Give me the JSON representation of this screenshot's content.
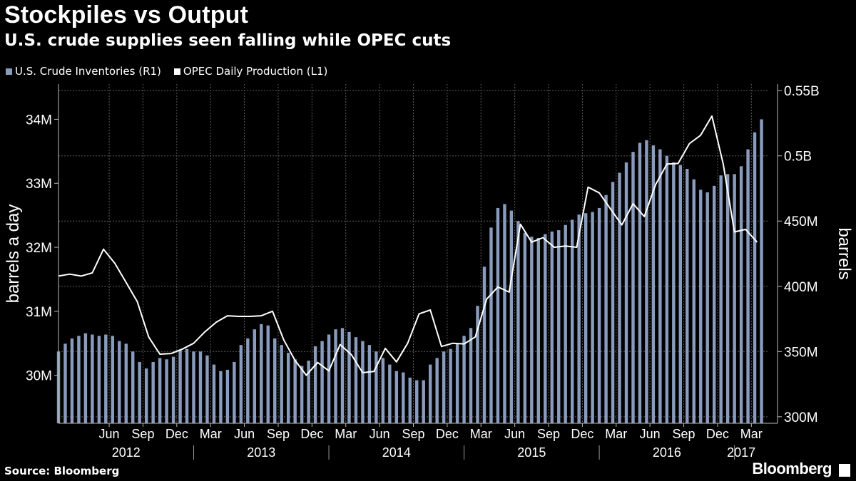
{
  "chart_data": {
    "type": "bar+line",
    "title": "Stockpiles vs Output",
    "subtitle": "U.S. crude supplies seen falling while OPEC cuts",
    "source": "Source: Bloomberg",
    "brand": "Bloomberg",
    "ylabel_left": "barrels a day",
    "ylabel_right": "barrels",
    "colors": {
      "bars": "#8a9cbd",
      "line": "#ffffff",
      "grid": "#5a5a5a",
      "background": "#000000"
    },
    "left_axis": {
      "min": 29.25,
      "max": 34.55,
      "ticks": [
        30,
        31,
        32,
        33,
        34
      ],
      "tick_labels": [
        "30M",
        "31M",
        "32M",
        "33M",
        "34M"
      ]
    },
    "right_axis": {
      "min": 295,
      "max": 555,
      "ticks": [
        300,
        350,
        400,
        450,
        500,
        550
      ],
      "tick_labels": [
        "300M",
        "350M",
        "400M",
        "450M",
        "0.5B",
        "0.55B"
      ]
    },
    "x_axis": {
      "month_labels": [
        "Jun",
        "Sep",
        "Dec",
        "Mar",
        "Jun",
        "Sep",
        "Dec",
        "Mar",
        "Jun",
        "Sep",
        "Dec",
        "Mar",
        "Jun",
        "Sep",
        "Dec",
        "Mar",
        "Jun",
        "Sep",
        "Dec",
        "Mar"
      ],
      "month_positions": [
        2012.375,
        2012.625,
        2012.875,
        2013.125,
        2013.375,
        2013.625,
        2013.875,
        2014.125,
        2014.375,
        2014.625,
        2014.875,
        2015.125,
        2015.375,
        2015.625,
        2015.875,
        2016.125,
        2016.375,
        2016.625,
        2016.875,
        2017.125
      ],
      "year_labels": [
        "2012",
        "2013",
        "2014",
        "2015",
        "2016",
        "2017"
      ],
      "year_positions": [
        2012.5,
        2013.5,
        2014.5,
        2015.5,
        2016.5,
        2017.05
      ],
      "year_dividers": [
        2013.0,
        2014.0,
        2015.0,
        2016.0,
        2017.0
      ],
      "xlim": [
        2012.0,
        2017.25
      ]
    },
    "series": [
      {
        "name": "U.S. Crude Inventories (R1)",
        "type": "bar",
        "axis": "right",
        "unit": "M barrels",
        "points": [
          [
            2012.0,
            350
          ],
          [
            2012.05,
            356
          ],
          [
            2012.1,
            360
          ],
          [
            2012.15,
            362
          ],
          [
            2012.2,
            364
          ],
          [
            2012.25,
            363
          ],
          [
            2012.3,
            362
          ],
          [
            2012.35,
            363
          ],
          [
            2012.4,
            362
          ],
          [
            2012.45,
            358
          ],
          [
            2012.5,
            356
          ],
          [
            2012.55,
            350
          ],
          [
            2012.6,
            342
          ],
          [
            2012.65,
            337
          ],
          [
            2012.7,
            342
          ],
          [
            2012.75,
            345
          ],
          [
            2012.8,
            344
          ],
          [
            2012.85,
            346
          ],
          [
            2012.9,
            351
          ],
          [
            2012.95,
            352
          ],
          [
            2013.0,
            350
          ],
          [
            2013.05,
            350
          ],
          [
            2013.1,
            347
          ],
          [
            2013.15,
            340
          ],
          [
            2013.2,
            335
          ],
          [
            2013.25,
            336
          ],
          [
            2013.3,
            342
          ],
          [
            2013.35,
            355
          ],
          [
            2013.4,
            360
          ],
          [
            2013.45,
            367
          ],
          [
            2013.5,
            371
          ],
          [
            2013.55,
            370
          ],
          [
            2013.6,
            360
          ],
          [
            2013.65,
            355
          ],
          [
            2013.7,
            349
          ],
          [
            2013.75,
            344
          ],
          [
            2013.8,
            339
          ],
          [
            2013.85,
            343
          ],
          [
            2013.9,
            354
          ],
          [
            2013.95,
            358
          ],
          [
            2014.0,
            363
          ],
          [
            2014.05,
            367
          ],
          [
            2014.1,
            368
          ],
          [
            2014.15,
            365
          ],
          [
            2014.2,
            361
          ],
          [
            2014.25,
            358
          ],
          [
            2014.3,
            355
          ],
          [
            2014.35,
            350
          ],
          [
            2014.4,
            345
          ],
          [
            2014.45,
            340
          ],
          [
            2014.5,
            335
          ],
          [
            2014.55,
            334
          ],
          [
            2014.6,
            330
          ],
          [
            2014.65,
            328
          ],
          [
            2014.7,
            328
          ],
          [
            2014.75,
            340
          ],
          [
            2014.8,
            345
          ],
          [
            2014.85,
            350
          ],
          [
            2014.9,
            352
          ],
          [
            2014.95,
            356
          ],
          [
            2015.0,
            362
          ],
          [
            2015.05,
            368
          ],
          [
            2015.1,
            385
          ],
          [
            2015.15,
            415
          ],
          [
            2015.2,
            445
          ],
          [
            2015.25,
            460
          ],
          [
            2015.3,
            463
          ],
          [
            2015.35,
            458
          ],
          [
            2015.4,
            450
          ],
          [
            2015.45,
            441
          ],
          [
            2015.5,
            438
          ],
          [
            2015.55,
            437
          ],
          [
            2015.6,
            440
          ],
          [
            2015.65,
            442
          ],
          [
            2015.7,
            443
          ],
          [
            2015.75,
            447
          ],
          [
            2015.8,
            451
          ],
          [
            2015.85,
            455
          ],
          [
            2015.9,
            456
          ],
          [
            2015.95,
            457
          ],
          [
            2016.0,
            460
          ],
          [
            2016.05,
            470
          ],
          [
            2016.1,
            480
          ],
          [
            2016.15,
            487
          ],
          [
            2016.2,
            495
          ],
          [
            2016.25,
            503
          ],
          [
            2016.3,
            510
          ],
          [
            2016.35,
            512
          ],
          [
            2016.4,
            508
          ],
          [
            2016.45,
            505
          ],
          [
            2016.5,
            500
          ],
          [
            2016.55,
            495
          ],
          [
            2016.6,
            493
          ],
          [
            2016.65,
            490
          ],
          [
            2016.7,
            482
          ],
          [
            2016.75,
            474
          ],
          [
            2016.8,
            472
          ],
          [
            2016.85,
            477
          ],
          [
            2016.9,
            485
          ],
          [
            2016.95,
            486
          ],
          [
            2017.0,
            486
          ],
          [
            2017.05,
            492
          ],
          [
            2017.1,
            505
          ],
          [
            2017.15,
            518
          ],
          [
            2017.2,
            528
          ]
        ]
      },
      {
        "name": "OPEC Daily Production (L1)",
        "type": "line",
        "axis": "left",
        "unit": "M barrels a day",
        "points": [
          [
            2012.0,
            31.55
          ],
          [
            2012.083,
            31.58
          ],
          [
            2012.167,
            31.55
          ],
          [
            2012.25,
            31.6
          ],
          [
            2012.333,
            31.97
          ],
          [
            2012.417,
            31.75
          ],
          [
            2012.5,
            31.45
          ],
          [
            2012.583,
            31.15
          ],
          [
            2012.667,
            30.6
          ],
          [
            2012.75,
            30.33
          ],
          [
            2012.833,
            30.34
          ],
          [
            2012.917,
            30.41
          ],
          [
            2013.0,
            30.5
          ],
          [
            2013.083,
            30.68
          ],
          [
            2013.167,
            30.83
          ],
          [
            2013.25,
            30.93
          ],
          [
            2013.333,
            30.92
          ],
          [
            2013.417,
            30.92
          ],
          [
            2013.5,
            30.93
          ],
          [
            2013.583,
            31.0
          ],
          [
            2013.667,
            30.55
          ],
          [
            2013.75,
            30.23
          ],
          [
            2013.833,
            30.0
          ],
          [
            2013.917,
            30.2
          ],
          [
            2014.0,
            30.07
          ],
          [
            2014.083,
            30.48
          ],
          [
            2014.167,
            30.32
          ],
          [
            2014.25,
            30.04
          ],
          [
            2014.333,
            30.06
          ],
          [
            2014.417,
            30.42
          ],
          [
            2014.5,
            30.21
          ],
          [
            2014.583,
            30.5
          ],
          [
            2014.667,
            30.96
          ],
          [
            2014.75,
            31.02
          ],
          [
            2014.833,
            30.45
          ],
          [
            2014.917,
            30.5
          ],
          [
            2015.0,
            30.49
          ],
          [
            2015.083,
            30.6
          ],
          [
            2015.167,
            31.19
          ],
          [
            2015.25,
            31.38
          ],
          [
            2015.333,
            31.3
          ],
          [
            2015.417,
            32.36
          ],
          [
            2015.5,
            32.08
          ],
          [
            2015.583,
            32.15
          ],
          [
            2015.667,
            32.0
          ],
          [
            2015.75,
            32.02
          ],
          [
            2015.833,
            32.0
          ],
          [
            2015.917,
            32.94
          ],
          [
            2016.0,
            32.85
          ],
          [
            2016.083,
            32.6
          ],
          [
            2016.167,
            32.35
          ],
          [
            2016.25,
            32.68
          ],
          [
            2016.333,
            32.48
          ],
          [
            2016.417,
            32.98
          ],
          [
            2016.5,
            33.3
          ],
          [
            2016.583,
            33.31
          ],
          [
            2016.667,
            33.62
          ],
          [
            2016.75,
            33.75
          ],
          [
            2016.833,
            34.05
          ],
          [
            2016.917,
            33.3
          ],
          [
            2017.0,
            32.24
          ],
          [
            2017.083,
            32.28
          ],
          [
            2017.167,
            32.08
          ]
        ]
      }
    ]
  }
}
